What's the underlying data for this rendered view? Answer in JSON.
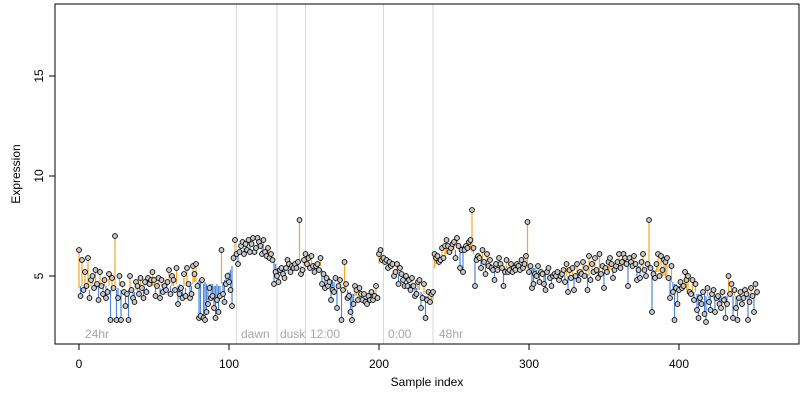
{
  "chart_data": {
    "type": "scatter",
    "title": "",
    "xlabel": "Sample index",
    "ylabel": "Expression",
    "xlim": [
      -16,
      480
    ],
    "ylim": [
      1.6,
      18.6
    ],
    "x_ticks": [
      0,
      100,
      200,
      300,
      400
    ],
    "y_ticks": [
      5,
      10,
      15
    ],
    "grid": false,
    "legend": "none",
    "colors": {
      "above": "#f5a623",
      "below": "#4f86d9",
      "point_fill": "#c9c9c9",
      "point_stroke": "#000000",
      "divider": "#d9d9d9",
      "annotation": "#a6a6a6"
    },
    "annotations": [
      {
        "x": 2,
        "text": "24hr"
      },
      {
        "x": 106,
        "text": "dawn"
      },
      {
        "x": 132,
        "text": "dusk"
      },
      {
        "x": 152,
        "text": "12:00"
      },
      {
        "x": 204,
        "text": "0:00"
      },
      {
        "x": 238,
        "text": "48hr"
      }
    ],
    "dividers": [
      105,
      132,
      151,
      203,
      236
    ],
    "series": [
      {
        "kind": "points",
        "x_start": 0,
        "baseline": [
          4.4,
          4.5,
          4.5,
          4.4,
          4.5,
          4.5,
          4.4,
          4.3,
          4.5,
          4.6,
          4.4,
          4.5,
          4.4,
          4.5,
          4.6,
          4.5,
          4.4,
          4.5,
          4.5,
          4.4,
          4.5,
          4.3,
          4.2,
          4.4,
          4.5,
          4.3,
          4.4,
          4.5,
          4.3,
          4.4,
          4.2,
          4.1,
          4.2,
          4.3,
          4.4,
          4.3,
          4.2,
          4.2,
          4.3,
          4.2,
          4.3,
          4.4,
          4.5,
          4.4,
          4.5,
          4.4,
          4.5,
          4.5,
          4.5,
          4.5,
          4.5,
          4.4,
          4.5,
          4.5,
          4.4,
          4.5,
          4.6,
          4.5,
          4.4,
          4.5,
          4.6,
          4.5,
          4.5,
          4.5,
          4.4,
          4.6,
          4.5,
          4.6,
          4.4,
          4.5,
          4.5,
          4.4,
          4.5,
          4.6,
          4.5,
          4.5,
          4.6,
          4.7,
          4.7,
          4.7,
          4.8,
          4.7,
          4.6,
          4.6,
          4.7,
          4.6,
          4.5,
          4.6,
          4.6,
          4.6,
          4.5,
          4.5,
          4.6,
          4.5,
          4.5,
          4.6,
          4.7,
          4.8,
          4.9,
          5.0,
          5.2,
          5.3,
          5.5,
          5.7,
          5.9,
          6.1,
          6.2,
          6.3,
          6.3,
          6.4,
          6.4,
          6.4,
          6.5,
          6.6,
          6.6,
          6.6,
          6.5,
          6.4,
          6.4,
          6.5,
          6.5,
          6.4,
          6.4,
          6.3,
          6.2,
          6.1,
          6.1,
          6.0,
          6.0,
          5.9,
          5.8,
          5.6,
          5.4,
          5.3,
          5.2,
          5.2,
          5.3,
          5.3,
          5.4,
          5.5,
          5.5,
          5.5,
          5.4,
          5.5,
          5.5,
          5.5,
          5.5,
          5.6,
          5.5,
          5.4,
          5.5,
          5.4,
          5.5,
          5.6,
          5.5,
          5.5,
          5.4,
          5.5,
          5.5,
          5.5,
          5.4,
          5.5,
          5.3,
          5.2,
          5.1,
          5.0,
          4.9,
          4.9,
          4.8,
          4.8,
          4.7,
          4.7,
          4.6,
          4.6,
          4.5,
          4.4,
          4.4,
          4.3,
          4.3,
          4.3,
          4.2,
          4.2,
          4.1,
          4.1,
          4.0,
          4.0,
          4.0,
          3.9,
          3.9,
          3.9,
          3.9,
          3.9,
          3.9,
          3.8,
          3.8,
          3.8,
          3.8,
          3.8,
          3.9,
          3.9,
          5.6,
          5.9,
          6.0,
          5.8,
          5.7,
          5.7,
          5.6,
          5.6,
          5.5,
          5.5,
          5.3,
          5.2,
          5.2,
          5.1,
          5.0,
          5.0,
          4.9,
          4.8,
          4.8,
          4.7,
          4.7,
          4.6,
          4.5,
          4.5,
          4.4,
          4.4,
          4.3,
          4.3,
          4.2,
          4.1,
          4.1,
          4.0,
          4.0,
          3.9,
          3.9,
          3.8,
          3.8,
          5.4,
          5.6,
          5.7,
          5.8,
          5.8,
          5.9,
          6.0,
          6.0,
          6.1,
          6.1,
          6.2,
          6.2,
          6.3,
          6.3,
          6.3,
          6.4,
          6.4,
          6.5,
          6.5,
          6.5,
          6.5,
          6.4,
          6.4,
          6.4,
          6.3,
          6.2,
          6.1,
          6.0,
          6.0,
          5.9,
          5.9,
          5.9,
          5.8,
          5.8,
          5.7,
          5.7,
          5.6,
          5.6,
          5.6,
          5.5,
          5.5,
          5.5,
          5.5,
          5.4,
          5.4,
          5.4,
          5.4,
          5.4,
          5.4,
          5.4,
          5.4,
          5.4,
          5.4,
          5.4,
          5.4,
          5.4,
          5.4,
          5.4,
          5.4,
          5.4,
          5.4,
          5.4,
          5.4,
          5.4,
          5.4,
          5.4,
          5.4,
          5.4,
          5.3,
          5.3,
          5.3,
          5.3,
          5.2,
          5.2,
          5.2,
          5.2,
          5.2,
          5.1,
          5.1,
          5.1,
          5.1,
          5.1,
          5.1,
          5.1,
          5.1,
          5.1,
          5.1,
          5.0,
          5.0,
          5.0,
          5.0,
          5.0,
          5.0,
          5.0,
          5.0,
          5.0,
          5.1,
          5.1,
          5.1,
          5.1,
          5.1,
          5.1,
          5.1,
          5.0,
          5.0,
          5.1,
          5.1,
          5.1,
          5.1,
          5.2,
          5.2,
          5.2,
          5.2,
          5.2,
          5.2,
          5.3,
          5.3,
          5.3,
          5.3,
          5.3,
          5.4,
          5.4,
          5.4,
          5.4,
          5.5,
          5.5,
          5.5,
          5.5,
          5.5,
          5.6,
          5.6,
          5.6,
          5.6,
          5.6,
          5.6,
          5.5,
          5.5,
          5.5,
          5.5,
          5.4,
          5.4,
          5.4,
          5.4,
          5.4,
          5.3,
          5.3,
          5.3,
          5.3,
          5.2,
          5.2,
          5.1,
          5.1,
          5.0,
          5.0,
          4.9,
          4.9,
          4.8,
          4.8,
          4.7,
          4.7,
          4.6,
          4.6,
          4.5,
          4.5,
          4.5,
          4.4,
          4.4,
          4.4,
          4.3,
          4.3,
          4.3,
          4.2,
          4.2,
          4.2,
          4.2,
          4.1,
          4.1,
          4.1,
          4.1,
          4.1,
          4.1,
          4.0,
          4.0,
          4.0,
          4.0,
          4.0,
          4.0,
          4.0,
          4.0,
          4.0,
          4.0,
          4.0,
          4.0,
          4.0,
          4.0,
          4.0,
          4.0,
          4.0,
          4.0,
          4.0,
          4.0,
          4.0,
          4.0,
          4.0,
          4.0,
          4.0,
          4.0,
          4.0,
          4.0,
          4.0,
          4.0,
          4.0,
          4.0,
          4.0,
          4.0,
          4.0
        ],
        "values": [
          6.3,
          4.0,
          5.8,
          4.3,
          5.2,
          4.5,
          5.9,
          3.9,
          4.8,
          5.0,
          4.4,
          5.3,
          4.6,
          3.8,
          5.2,
          4.5,
          4.1,
          4.8,
          3.9,
          4.2,
          5.1,
          2.8,
          4.9,
          4.4,
          7.0,
          2.8,
          3.9,
          5.0,
          2.8,
          4.6,
          4.2,
          3.5,
          4.1,
          2.8,
          5.0,
          4.3,
          3.9,
          3.7,
          4.7,
          4.5,
          4.1,
          4.9,
          4.4,
          3.9,
          4.7,
          4.2,
          4.9,
          4.6,
          4.8,
          5.2,
          4.8,
          4.0,
          4.5,
          4.9,
          3.9,
          4.8,
          4.2,
          4.5,
          4.3,
          4.7,
          5.3,
          4.1,
          5.0,
          4.8,
          4.3,
          5.4,
          3.6,
          4.1,
          4.4,
          3.9,
          5.1,
          4.0,
          5.4,
          4.6,
          3.9,
          4.1,
          5.5,
          5.1,
          5.6,
          4.5,
          2.9,
          3.0,
          4.8,
          2.9,
          2.8,
          3.2,
          3.6,
          4.4,
          3.9,
          4.0,
          3.4,
          2.9,
          3.8,
          3.2,
          4.0,
          6.3,
          4.1,
          3.7,
          4.6,
          5.0,
          4.7,
          4.3,
          3.5,
          5.9,
          6.8,
          6.1,
          5.6,
          6.2,
          6.5,
          6.7,
          6.1,
          6.6,
          6.3,
          6.8,
          6.2,
          6.6,
          6.9,
          6.2,
          6.4,
          6.9,
          6.7,
          6.5,
          6.1,
          6.8,
          6.2,
          6.0,
          6.4,
          5.9,
          6.1,
          5.8,
          4.6,
          5.2,
          5.0,
          4.7,
          5.3,
          5.4,
          5.1,
          4.9,
          5.4,
          5.8,
          5.6,
          5.2,
          5.5,
          5.4,
          5.6,
          5.4,
          5.7,
          7.8,
          5.1,
          5.3,
          5.8,
          6.1,
          5.6,
          5.9,
          5.4,
          6.0,
          5.5,
          5.2,
          5.5,
          5.6,
          5.3,
          5.9,
          4.6,
          5.1,
          4.4,
          4.9,
          4.5,
          4.7,
          3.8,
          4.3,
          4.2,
          4.9,
          3.4,
          4.5,
          4.8,
          2.8,
          4.3,
          5.7,
          4.6,
          3.9,
          4.0,
          3.2,
          2.8,
          3.6,
          4.5,
          4.3,
          3.8,
          4.4,
          4.1,
          3.8,
          4.1,
          3.7,
          3.6,
          4.0,
          3.8,
          4.2,
          3.8,
          4.0,
          4.5,
          3.9,
          6.1,
          6.3,
          5.8,
          5.9,
          5.7,
          5.8,
          5.4,
          5.7,
          5.5,
          5.6,
          5.0,
          5.2,
          5.6,
          4.6,
          5.4,
          5.1,
          4.8,
          4.5,
          5.0,
          4.5,
          4.8,
          4.3,
          4.9,
          4.5,
          4.0,
          4.1,
          4.7,
          4.8,
          3.4,
          3.9,
          4.6,
          2.9,
          3.8,
          4.2,
          3.7,
          4.1,
          4.2,
          6.1,
          5.9,
          6.0,
          5.7,
          5.8,
          6.4,
          5.9,
          6.5,
          6.8,
          6.5,
          6.2,
          6.4,
          6.6,
          6.7,
          5.9,
          6.9,
          6.5,
          5.4,
          6.3,
          5.2,
          6.3,
          6.5,
          6.4,
          6.7,
          6.8,
          8.3,
          6.4,
          4.5,
          5.8,
          6.0,
          5.9,
          5.4,
          6.3,
          5.7,
          5.1,
          6.1,
          5.5,
          5.8,
          5.4,
          5.3,
          4.8,
          5.6,
          5.3,
          5.9,
          5.6,
          5.4,
          4.5,
          5.2,
          5.8,
          5.2,
          5.3,
          5.6,
          5.2,
          5.4,
          5.3,
          5.6,
          5.5,
          5.3,
          5.8,
          5.4,
          5.6,
          6.0,
          7.7,
          5.2,
          5.5,
          4.4,
          4.6,
          5.1,
          5.0,
          5.5,
          4.7,
          5.2,
          5.1,
          4.6,
          4.3,
          5.2,
          5.4,
          4.9,
          4.5,
          5.0,
          5.1,
          5.0,
          5.2,
          4.8,
          5.0,
          5.1,
          5.3,
          4.7,
          5.6,
          4.2,
          5.3,
          4.9,
          5.4,
          4.3,
          5.0,
          5.6,
          4.8,
          5.2,
          5.1,
          5.7,
          5.0,
          5.4,
          4.3,
          6.0,
          4.8,
          5.6,
          5.2,
          5.9,
          5.3,
          4.9,
          6.1,
          5.1,
          5.5,
          4.4,
          5.4,
          5.2,
          5.7,
          5.9,
          5.6,
          4.9,
          5.3,
          5.5,
          5.7,
          6.1,
          5.4,
          5.7,
          6.1,
          5.9,
          5.6,
          4.5,
          5.9,
          5.7,
          5.5,
          6.0,
          5.6,
          4.8,
          5.3,
          4.9,
          5.7,
          6.1,
          5.3,
          5.0,
          5.6,
          7.8,
          5.4,
          3.2,
          5.1,
          4.9,
          5.6,
          6.1,
          5.0,
          6.0,
          5.3,
          5.8,
          5.7,
          5.9,
          4.9,
          3.9,
          5.5,
          4.2,
          2.8,
          4.4,
          3.6,
          4.3,
          4.7,
          4.4,
          4.5,
          5.2,
          4.8,
          5.0,
          4.2,
          4.1,
          4.8,
          3.8,
          4.6,
          3.3,
          2.9,
          3.9,
          3.6,
          4.2,
          3.1,
          2.7,
          4.4,
          3.7,
          3.3,
          4.1,
          4.3,
          3.2,
          3.9,
          4.0,
          3.6,
          3.4,
          4.2,
          3.8,
          2.9,
          3.6,
          5.0,
          4.1,
          4.6,
          2.9,
          4.3,
          3.4,
          2.8,
          3.9,
          4.2,
          3.6,
          3.9,
          4.3,
          4.1,
          2.8,
          3.7,
          4.4,
          4.0,
          3.2,
          4.6,
          4.2
        ]
      }
    ]
  }
}
